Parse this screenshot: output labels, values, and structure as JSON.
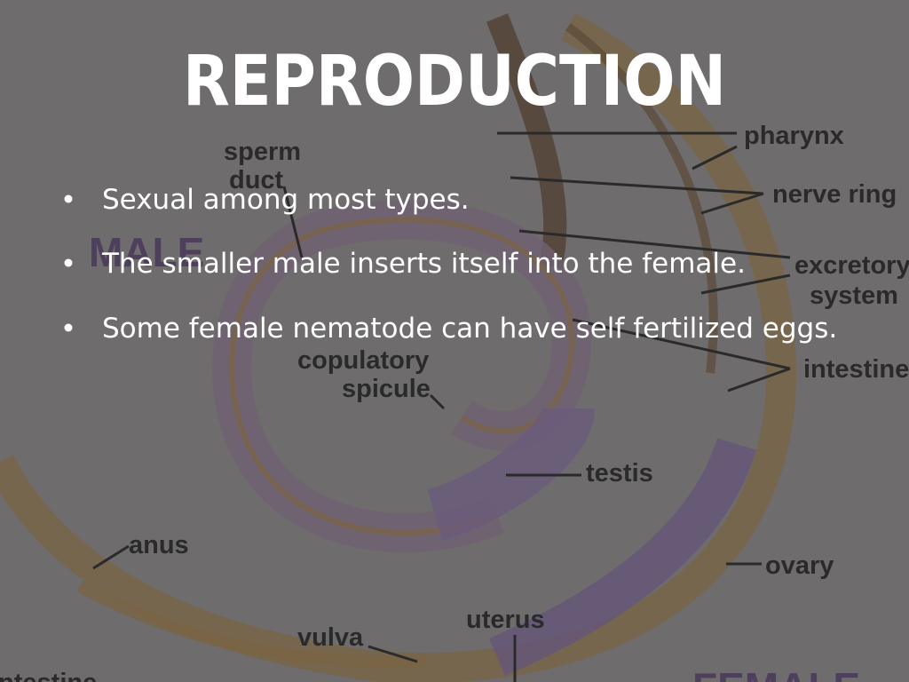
{
  "slide": {
    "title": "REPRODUCTION",
    "bullets": [
      "Sexual among most types.",
      "The smaller male inserts itself into the female.",
      "Some female nematode can have self fertilized eggs."
    ],
    "diagram_labels": {
      "sperm": "sperm",
      "duct": "duct",
      "male": "MALE",
      "pharynx": "pharynx",
      "nerve_ring": "nerve ring",
      "excretory": "excretory",
      "system": "system",
      "copulatory": "copulatory",
      "spicule": "spicule",
      "intestine_right": "intestine",
      "testis": "testis",
      "anus": "anus",
      "ovary": "ovary",
      "uterus": "uterus",
      "vulva": "vulva",
      "intestine_left": "intestine",
      "female": "FEMALE"
    }
  }
}
